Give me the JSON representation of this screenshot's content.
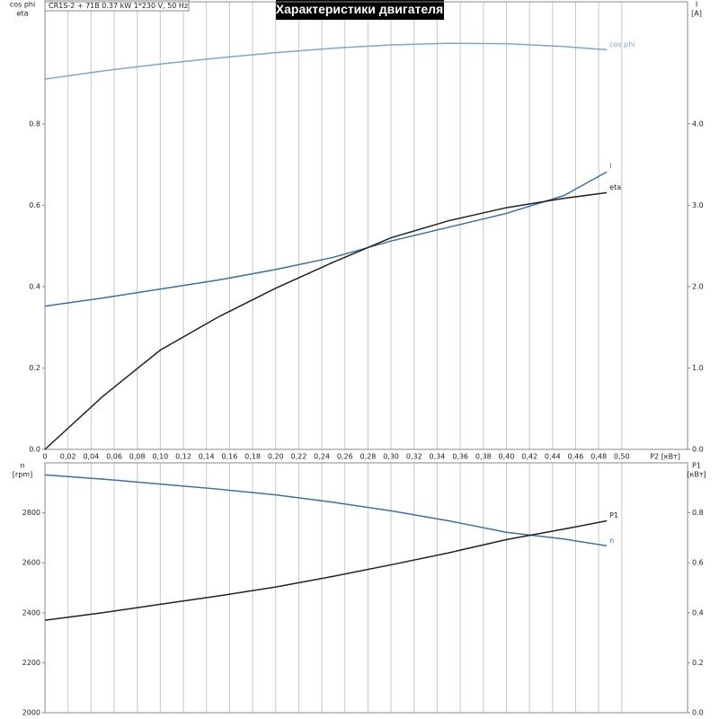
{
  "chart_data": [
    {
      "type": "line",
      "title": "Характеристики двигателя",
      "subtitle": "CR1S-2 + 71B   0.37 kW   1*230 V, 50 Hz",
      "xlabel": "P2 [кВт]",
      "ylabel_lines": [
        "cos phi",
        "eta"
      ],
      "y2label_lines": [
        "I",
        "[A]"
      ],
      "xlim": [
        0,
        0.557
      ],
      "ylim": [
        0,
        1.1
      ],
      "y2lim": [
        0,
        5.5
      ],
      "grid": "x",
      "xticks": [
        0,
        {
          "value": 0.02,
          "label": "0,02"
        },
        {
          "value": 0.04,
          "label": "0,04"
        },
        {
          "value": 0.06,
          "label": "0,06"
        },
        {
          "value": 0.08,
          "label": "0,08"
        },
        {
          "value": 0.1,
          "label": "0,10"
        },
        {
          "value": 0.12,
          "label": "0,12"
        },
        {
          "value": 0.14,
          "label": "0,14"
        },
        {
          "value": 0.16,
          "label": "0,16"
        },
        {
          "value": 0.18,
          "label": "0,18"
        },
        {
          "value": 0.2,
          "label": "0,20"
        },
        {
          "value": 0.22,
          "label": "0,22"
        },
        {
          "value": 0.24,
          "label": "0,24"
        },
        {
          "value": 0.26,
          "label": "0,26"
        },
        {
          "value": 0.28,
          "label": "0,28"
        },
        {
          "value": 0.3,
          "label": "0,30"
        },
        {
          "value": 0.32,
          "label": "0,32"
        },
        {
          "value": 0.34,
          "label": "0,34"
        },
        {
          "value": 0.36,
          "label": "0,36"
        },
        {
          "value": 0.38,
          "label": "0,38"
        },
        {
          "value": 0.4,
          "label": "0,40"
        },
        {
          "value": 0.42,
          "label": "0,42"
        },
        {
          "value": 0.44,
          "label": "0,44"
        },
        {
          "value": 0.46,
          "label": "0,46"
        },
        {
          "value": 0.48,
          "label": "0,48"
        },
        {
          "value": 0.5,
          "label": "0,50"
        }
      ],
      "yticks": [
        {
          "value": 0,
          "label": "0.0"
        },
        0.2,
        0.4,
        0.6,
        0.8
      ],
      "y2ticks": [
        {
          "value": 0,
          "label": "0.0"
        },
        {
          "value": 1,
          "label": "1.0"
        },
        {
          "value": 2,
          "label": "2.0"
        },
        {
          "value": 3,
          "label": "3.0"
        },
        {
          "value": 4,
          "label": "4.0"
        }
      ],
      "x": [
        0,
        0.05,
        0.1,
        0.15,
        0.2,
        0.25,
        0.3,
        0.35,
        0.4,
        0.45,
        0.487
      ],
      "series": [
        {
          "name": "cos phi",
          "color": "#7fa7c9",
          "values": [
            0.91,
            0.93,
            0.947,
            0.962,
            0.975,
            0.986,
            0.994,
            0.998,
            0.997,
            0.99,
            0.982
          ]
        },
        {
          "name": "I",
          "color": "#3e6f9e",
          "axis": "y2",
          "values": [
            1.76,
            1.86,
            1.97,
            2.08,
            2.21,
            2.36,
            2.56,
            2.73,
            2.9,
            3.12,
            3.41
          ]
        },
        {
          "name": "eta",
          "color": "#222222",
          "values": [
            0,
            0.13,
            0.244,
            0.325,
            0.396,
            0.46,
            0.52,
            0.562,
            0.594,
            0.617,
            0.631
          ]
        }
      ]
    },
    {
      "type": "line",
      "ylabel_lines": [
        "n",
        "[rpm]"
      ],
      "y2label_lines": [
        "P1",
        "[кВт]"
      ],
      "xlim": [
        0,
        0.557
      ],
      "ylim": [
        2000,
        3000
      ],
      "y2lim": [
        0,
        1.0
      ],
      "grid": "x",
      "yticks": [
        2000,
        2200,
        2400,
        2600,
        2800
      ],
      "y2ticks": [
        {
          "value": 0,
          "label": "0.0"
        },
        0.2,
        0.4,
        0.6,
        0.8
      ],
      "x": [
        0,
        0.05,
        0.1,
        0.15,
        0.2,
        0.25,
        0.3,
        0.35,
        0.4,
        0.45,
        0.487
      ],
      "series": [
        {
          "name": "n",
          "color": "#3e6f9e",
          "values": [
            2952,
            2935,
            2915,
            2895,
            2872,
            2842,
            2808,
            2768,
            2722,
            2695,
            2668
          ]
        },
        {
          "name": "P1",
          "color": "#222222",
          "axis": "y2",
          "values": [
            0.37,
            0.4,
            0.434,
            0.467,
            0.503,
            0.546,
            0.592,
            0.64,
            0.693,
            0.735,
            0.768
          ]
        }
      ]
    }
  ]
}
